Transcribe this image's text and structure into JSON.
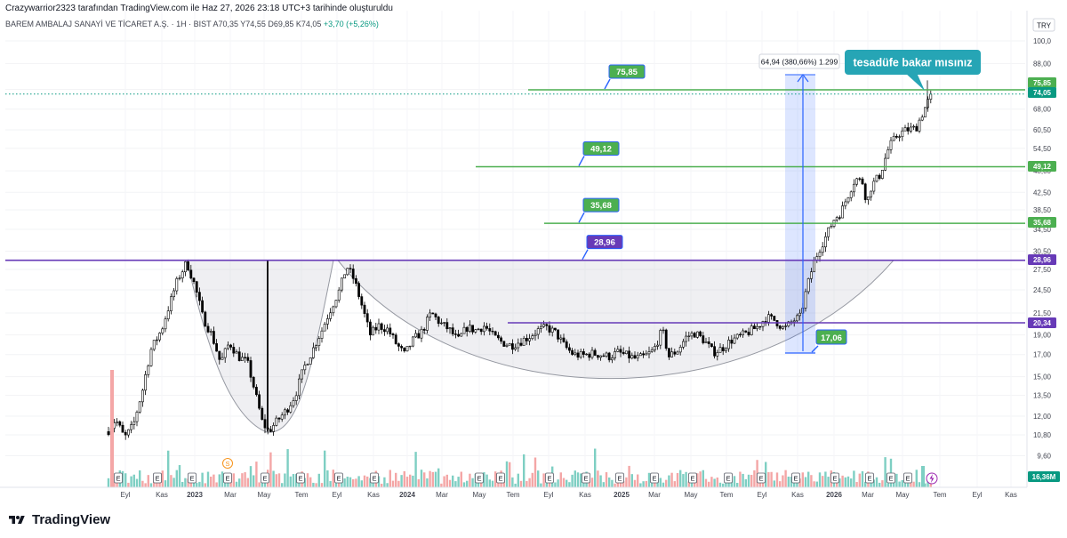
{
  "header": {
    "attribution": "Crazywarrior2323 tarafından TradingView.com ile Haz 27, 2026 23:18 UTC+3 tarihinde oluşturuldu",
    "symbol": "BAREM AMBALAJ SANAYİ VE TİCARET A.Ş.",
    "interval": "1H",
    "exchange": "BIST",
    "ohlc": "A70,35 Y74,55 D69,85 K74,05",
    "change": "+3,70 (+5,26%)"
  },
  "brand": {
    "name": "TradingView",
    "logo_icon": "tradingview-logo-icon"
  },
  "chart_data": {
    "type": "candlestick",
    "currency": "TRY",
    "price_scale": "log",
    "y_range": [
      9.0,
      115.0
    ],
    "y_ticks": [
      "100,0",
      "88,00",
      "76,00",
      "68,00",
      "60,50",
      "54,50",
      "48,00",
      "42,50",
      "38,50",
      "34,50",
      "30,50",
      "27,50",
      "24,50",
      "21,50",
      "19,00",
      "17,00",
      "15,00",
      "13,50",
      "12,00",
      "10,80",
      "9,60"
    ],
    "x_ticks": [
      "Eyl",
      "Kas",
      "2023",
      "Mar",
      "May",
      "Tem",
      "Eyl",
      "Kas",
      "2024",
      "Mar",
      "May",
      "Tem",
      "Eyl",
      "Kas",
      "2025",
      "Mar",
      "May",
      "Tem",
      "Eyl",
      "Kas",
      "2026",
      "Mar",
      "May",
      "Tem",
      "Eyl",
      "Kas"
    ],
    "price_tags": [
      {
        "label": "75,85",
        "color": "#4caf50"
      },
      {
        "label": "74,05",
        "color": "#089981"
      },
      {
        "label": "49,12",
        "color": "#4caf50"
      },
      {
        "label": "35,68",
        "color": "#4caf50"
      },
      {
        "label": "28,96",
        "color": "#673ab7"
      },
      {
        "label": "20,34",
        "color": "#673ab7"
      }
    ],
    "volume_tag": "16,36M",
    "levels": [
      {
        "value": 75.85,
        "label": "75,85",
        "color": "#4caf50"
      },
      {
        "value": 49.12,
        "label": "49,12",
        "color": "#4caf50"
      },
      {
        "value": 35.68,
        "label": "35,68",
        "color": "#4caf50"
      },
      {
        "value": 28.96,
        "label": "28,96",
        "color": "#673ab7"
      },
      {
        "value": 20.34,
        "label": "20,34",
        "color": "#673ab7"
      }
    ],
    "annotations": {
      "callout": "tesadüfe bakar mısınız",
      "measure_label": "64,94 (380,66%) 1.299",
      "target_label": "17,06"
    },
    "up_color": "#ffffff",
    "down_color": "#000000",
    "volume_up_color": "#7ecfc3",
    "volume_down_color": "#f4a6a6",
    "event_markers": {
      "earnings": "E",
      "split": "S"
    }
  }
}
